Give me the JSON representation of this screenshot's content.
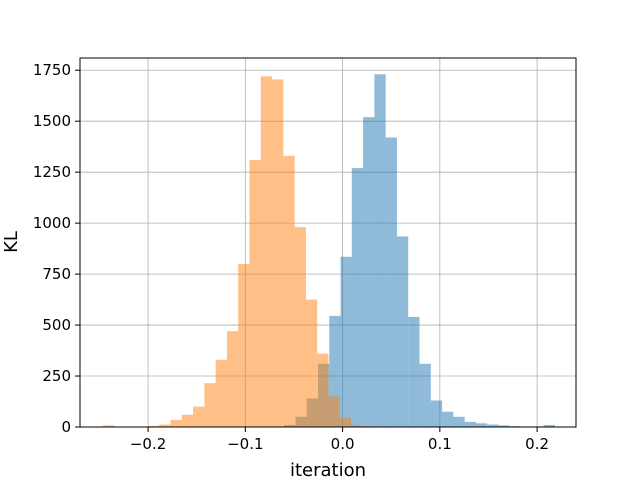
{
  "chart_data": {
    "type": "bar",
    "title": "",
    "xlabel": "iteration",
    "ylabel": "KL",
    "xlim": [
      -0.27,
      0.24
    ],
    "ylim": [
      0,
      1810
    ],
    "xticks": [
      -0.2,
      -0.1,
      0.0,
      0.1,
      0.2
    ],
    "xtick_labels": [
      "−0.2",
      "−0.1",
      "0.0",
      "0.1",
      "0.2"
    ],
    "yticks": [
      0,
      250,
      500,
      750,
      1000,
      1250,
      1500,
      1750
    ],
    "ytick_labels": [
      "0",
      "250",
      "500",
      "750",
      "1000",
      "1250",
      "1500",
      "1750"
    ],
    "grid": true,
    "legend": false,
    "series": [
      {
        "color": "#1f77b4",
        "opacity": 0.5,
        "bin_width": 0.0116,
        "bins": [
          [
            -0.0717,
            2
          ],
          [
            -0.0601,
            10
          ],
          [
            -0.0485,
            50
          ],
          [
            -0.0369,
            140
          ],
          [
            -0.0253,
            310
          ],
          [
            -0.0137,
            545
          ],
          [
            -0.0021,
            835
          ],
          [
            0.0095,
            1270
          ],
          [
            0.0211,
            1520
          ],
          [
            0.0327,
            1730
          ],
          [
            0.0443,
            1420
          ],
          [
            0.0559,
            935
          ],
          [
            0.0675,
            540
          ],
          [
            0.0791,
            310
          ],
          [
            0.0907,
            130
          ],
          [
            0.1023,
            75
          ],
          [
            0.1139,
            50
          ],
          [
            0.1255,
            25
          ],
          [
            0.1371,
            18
          ],
          [
            0.1487,
            12
          ],
          [
            0.1603,
            8
          ],
          [
            0.1719,
            4
          ],
          [
            0.1835,
            2
          ],
          [
            0.1951,
            3
          ],
          [
            0.2067,
            10
          ]
        ]
      },
      {
        "color": "#ff7f0e",
        "opacity": 0.5,
        "bin_width": 0.0116,
        "bins": [
          [
            -0.2465,
            8
          ],
          [
            -0.2349,
            0
          ],
          [
            -0.2233,
            1
          ],
          [
            -0.2117,
            2
          ],
          [
            -0.2001,
            5
          ],
          [
            -0.1885,
            12
          ],
          [
            -0.1769,
            35
          ],
          [
            -0.1653,
            60
          ],
          [
            -0.1537,
            100
          ],
          [
            -0.1421,
            215
          ],
          [
            -0.1305,
            330
          ],
          [
            -0.1189,
            470
          ],
          [
            -0.1073,
            800
          ],
          [
            -0.0957,
            1310
          ],
          [
            -0.0841,
            1720
          ],
          [
            -0.0725,
            1705
          ],
          [
            -0.0609,
            1330
          ],
          [
            -0.0493,
            980
          ],
          [
            -0.0377,
            625
          ],
          [
            -0.0261,
            360
          ],
          [
            -0.0145,
            150
          ],
          [
            -0.0029,
            45
          ],
          [
            0.0087,
            8
          ],
          [
            0.0203,
            3
          ]
        ]
      }
    ]
  }
}
